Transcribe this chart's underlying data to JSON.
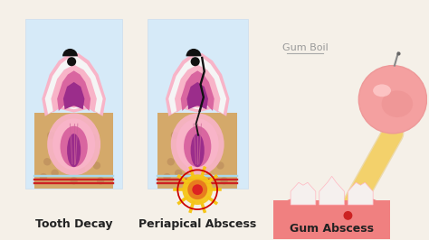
{
  "bg_color": "#f5f0e8",
  "panel1_bg": "#d6eaf8",
  "label1": "Tooth Decay",
  "label2": "Periapical Abscess",
  "label3": "Gum Abscess",
  "label_gum_boil": "Gum Boil",
  "label_fontsize": 9,
  "tooth_enamel": "#f5f5f5",
  "tooth_dentin_outer": "#f8b4c8",
  "tooth_dentin_inner": "#d966a0",
  "tooth_pulp": "#9b2d8b",
  "tooth_root_outer": "#f8b4c8",
  "bone_color": "#d4a96a",
  "bone_spot": "#b8895a",
  "abscess_yellow": "#f5c518",
  "abscess_orange": "#e87c1e",
  "abscess_red_circle": "#cc0000",
  "gum_pink": "#f08080",
  "gum_light": "#ffb6c1",
  "boil_pink": "#f4a0a0",
  "boil_highlight": "#ffd0d0",
  "ray_yellow": "#f5d060",
  "crack_color": "#111111",
  "decay_color": "#111111",
  "nerve_color": "#cc6699",
  "blood_red": "#cc2222",
  "water_blue": "#a8d8ea"
}
